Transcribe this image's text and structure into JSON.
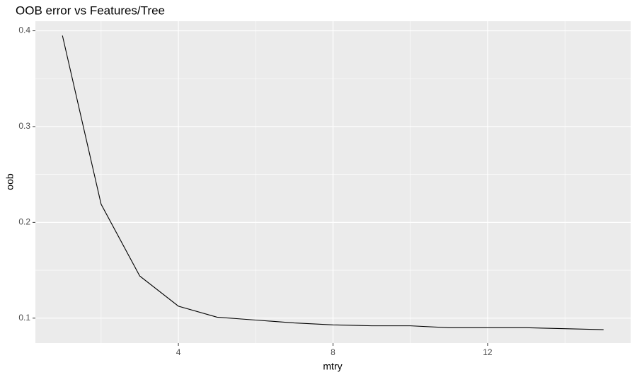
{
  "chart_data": {
    "type": "line",
    "title": "OOB error vs Features/Tree",
    "xlabel": "mtry",
    "ylabel": "oob",
    "x": [
      1,
      2,
      3,
      4,
      5,
      6,
      7,
      8,
      9,
      10,
      11,
      12,
      13,
      14,
      15
    ],
    "values": [
      0.395,
      0.219,
      0.144,
      0.1125,
      0.101,
      0.098,
      0.095,
      0.093,
      0.092,
      0.092,
      0.09,
      0.09,
      0.09,
      0.089,
      0.088
    ],
    "color": "#000000",
    "xlim": [
      0.3,
      15.7
    ],
    "xticks": [
      4,
      8,
      12
    ],
    "x_minor_grid": [
      2,
      6,
      10,
      14
    ],
    "ylim": [
      0.074,
      0.41
    ],
    "yticks": [
      0.1,
      0.2,
      0.3,
      0.4
    ],
    "y_minor_grid": [
      0.15,
      0.25,
      0.35
    ],
    "grid": true
  }
}
